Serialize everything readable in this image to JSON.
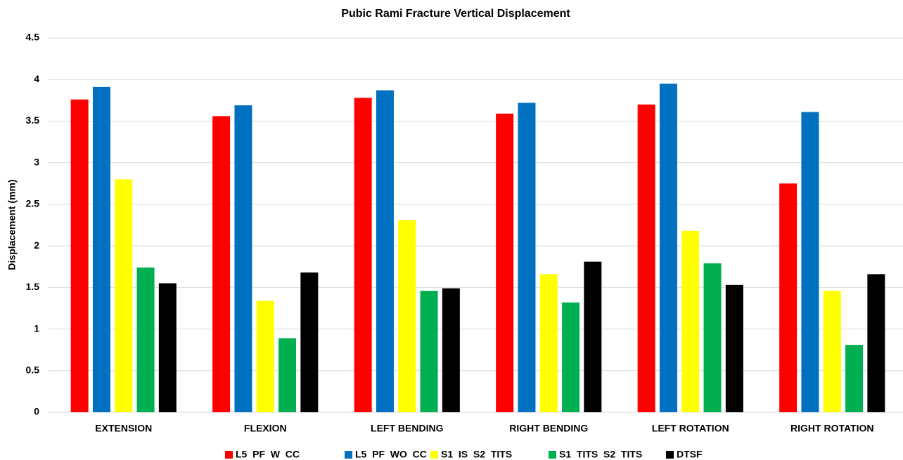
{
  "chart_data": {
    "type": "bar",
    "title": "Pubic Rami Fracture Vertical Displacement",
    "y_label": "Displacement (mm)",
    "categories": [
      "EXTENSION",
      "FLEXION",
      "LEFT BENDING",
      "RIGHT BENDING",
      "LEFT ROTATION",
      "RIGHT ROTATION"
    ],
    "series": [
      {
        "name": "L5  PF  W  CC",
        "color": "#ff0000",
        "values": [
          3.76,
          3.56,
          3.78,
          3.59,
          3.7,
          2.75
        ]
      },
      {
        "name": "L5  PF  WO  CC",
        "color": "#0070c0",
        "values": [
          3.91,
          3.69,
          3.87,
          3.72,
          3.95,
          3.61
        ]
      },
      {
        "name": "S1  IS  S2  TITS",
        "color": "#ffff00",
        "values": [
          2.8,
          1.34,
          2.31,
          1.66,
          2.18,
          1.46
        ]
      },
      {
        "name": "S1  TITS  S2  TITS",
        "color": "#00b050",
        "values": [
          1.74,
          0.89,
          1.46,
          1.32,
          1.79,
          0.81
        ]
      },
      {
        "name": "DTSF",
        "color": "#000000",
        "values": [
          1.55,
          1.68,
          1.49,
          1.81,
          1.53,
          1.66
        ]
      }
    ],
    "ylim": [
      0,
      4.5
    ],
    "yticks": [
      0,
      0.5,
      1,
      1.5,
      2,
      2.5,
      3,
      3.5,
      4,
      4.5
    ],
    "grid": true,
    "legend": "bottom"
  }
}
